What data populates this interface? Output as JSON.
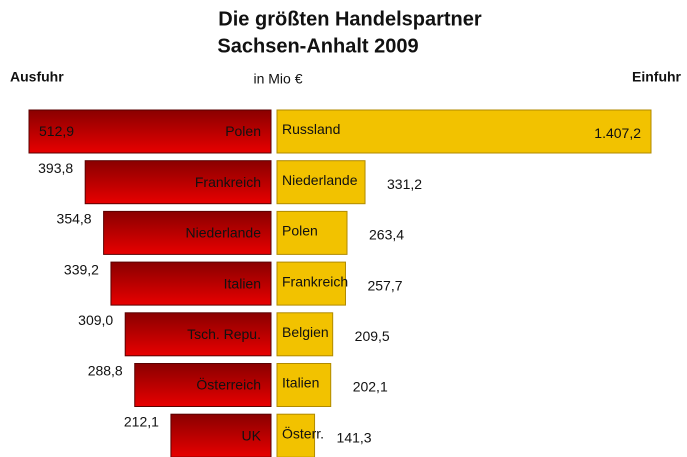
{
  "title": [
    "Die größten Handelspartner",
    "Sachsen-Anhalt 2009"
  ],
  "unit": "in Mio €",
  "chart_data": [
    {
      "type": "bar",
      "orientation": "horizontal",
      "direction": "left",
      "label": "Ausfuhr",
      "color": "#e80000",
      "categories": [
        "Polen",
        "Frankreich",
        "Niederlande",
        "Italien",
        "Tsch. Repu.",
        "Österreich",
        "UK"
      ],
      "values": [
        512.9,
        393.8,
        354.8,
        339.2,
        309.0,
        288.8,
        212.1
      ],
      "value_labels": [
        "512,9",
        "393,8",
        "354,8",
        "339,2",
        "309,0",
        "288,8",
        "212,1"
      ]
    },
    {
      "type": "bar",
      "orientation": "horizontal",
      "direction": "right",
      "label": "Einfuhr",
      "color": "#f2c200",
      "categories": [
        "Russland",
        "Niederlande",
        "Polen",
        "Frankreich",
        "Belgien",
        "Italien",
        "Österr."
      ],
      "values": [
        1407.2,
        331.2,
        263.4,
        257.7,
        209.5,
        202.1,
        141.3
      ],
      "value_labels": [
        "1.407,2",
        "331,2",
        "263,4",
        "257,7",
        "209,5",
        "202,1",
        "141,3"
      ]
    }
  ]
}
